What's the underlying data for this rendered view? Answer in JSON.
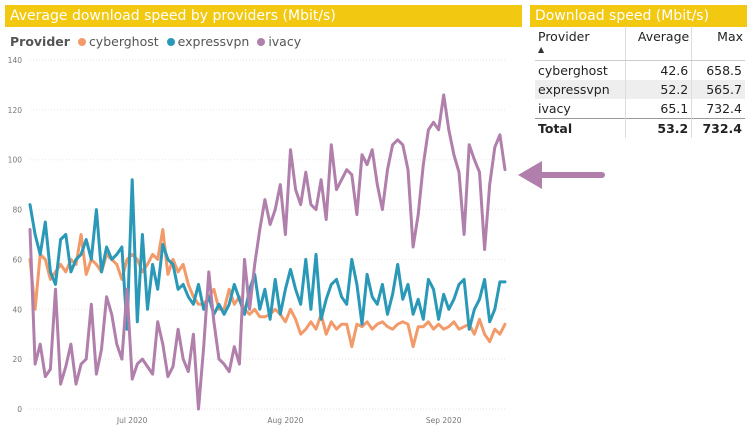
{
  "chart_panel": {
    "title": "Average download speed by providers (Mbit/s)",
    "legend_label": "Provider",
    "legend_items": [
      "cyberghost",
      "expressvpn",
      "ivacy"
    ]
  },
  "table_panel": {
    "title": "Download speed (Mbit/s)",
    "headers": [
      "Provider",
      "Average",
      "Max"
    ],
    "rows": [
      [
        "cyberghost",
        "42.6",
        "658.5"
      ],
      [
        "expressvpn",
        "52.2",
        "565.7"
      ],
      [
        "ivacy",
        "65.1",
        "732.4"
      ]
    ],
    "total": [
      "Total",
      "53.2",
      "732.4"
    ]
  },
  "arrow_color": "#b07fac",
  "chart_data": {
    "type": "line",
    "title": "Average download speed by providers (Mbit/s)",
    "xlabel": "",
    "ylabel": "",
    "ylim": [
      0,
      140
    ],
    "yticks": [
      0,
      20,
      40,
      60,
      80,
      100,
      120,
      140
    ],
    "xtick_labels": [
      "Jul 2020",
      "Aug 2020",
      "Sep 2020"
    ],
    "xtick_positions": [
      20,
      50,
      81
    ],
    "grid": true,
    "legend_position": "top-left",
    "x": [
      0,
      1,
      2,
      3,
      4,
      5,
      6,
      7,
      8,
      9,
      10,
      11,
      12,
      13,
      14,
      15,
      16,
      17,
      18,
      19,
      20,
      21,
      22,
      23,
      24,
      25,
      26,
      27,
      28,
      29,
      30,
      31,
      32,
      33,
      34,
      35,
      36,
      37,
      38,
      39,
      40,
      41,
      42,
      43,
      44,
      45,
      46,
      47,
      48,
      49,
      50,
      51,
      52,
      53,
      54,
      55,
      56,
      57,
      58,
      59,
      60,
      61,
      62,
      63,
      64,
      65,
      66,
      67,
      68,
      69,
      70,
      71,
      72,
      73,
      74,
      75,
      76,
      77,
      78,
      79,
      80,
      81,
      82,
      83,
      84,
      85,
      86,
      87,
      88,
      89,
      90,
      91,
      92,
      93
    ],
    "series": [
      {
        "name": "cyberghost",
        "color": "#f39a6a",
        "values": [
          60,
          40,
          62,
          60,
          52,
          55,
          58,
          55,
          60,
          58,
          70,
          54,
          60,
          58,
          55,
          62,
          60,
          58,
          52,
          60,
          62,
          60,
          55,
          58,
          62,
          60,
          72,
          54,
          60,
          55,
          58,
          50,
          45,
          42,
          42,
          45,
          48,
          40,
          40,
          48,
          42,
          45,
          40,
          38,
          40,
          37,
          37,
          38,
          40,
          38,
          35,
          40,
          36,
          30,
          32,
          35,
          32,
          38,
          30,
          35,
          32,
          34,
          34,
          25,
          34,
          33,
          35,
          32,
          34,
          35,
          33,
          32,
          34,
          35,
          34,
          25,
          33,
          33,
          35,
          32,
          34,
          32,
          33,
          35,
          32,
          33,
          34,
          30,
          36,
          30,
          27,
          32,
          30,
          34
        ]
      },
      {
        "name": "expressvpn",
        "color": "#2a98b7",
        "values": [
          82,
          70,
          62,
          75,
          55,
          50,
          68,
          70,
          55,
          60,
          62,
          68,
          60,
          80,
          55,
          65,
          60,
          62,
          65,
          32,
          92,
          35,
          70,
          40,
          58,
          48,
          66,
          60,
          58,
          48,
          50,
          45,
          42,
          50,
          40,
          45,
          38,
          42,
          38,
          42,
          50,
          44,
          38,
          48,
          54,
          40,
          48,
          36,
          52,
          38,
          48,
          56,
          48,
          42,
          60,
          40,
          62,
          36,
          44,
          50,
          52,
          45,
          42,
          60,
          50,
          34,
          54,
          45,
          42,
          50,
          38,
          46,
          58,
          44,
          50,
          38,
          44,
          36,
          52,
          48,
          36,
          46,
          40,
          44,
          50,
          52,
          32,
          40,
          44,
          52,
          35,
          40,
          51,
          51
        ]
      },
      {
        "name": "ivacy",
        "color": "#b07fac",
        "values": [
          72,
          18,
          26,
          13,
          16,
          48,
          10,
          17,
          26,
          10,
          18,
          20,
          42,
          14,
          24,
          45,
          38,
          26,
          20,
          48,
          12,
          18,
          20,
          17,
          14,
          35,
          26,
          13,
          17,
          32,
          20,
          15,
          30,
          0,
          25,
          55,
          35,
          20,
          18,
          15,
          25,
          18,
          60,
          40,
          58,
          72,
          84,
          74,
          80,
          90,
          70,
          104,
          88,
          82,
          95,
          82,
          80,
          92,
          76,
          106,
          88,
          92,
          96,
          94,
          78,
          102,
          98,
          104,
          90,
          80,
          96,
          106,
          108,
          106,
          96,
          65,
          78,
          98,
          112,
          115,
          112,
          126,
          112,
          102,
          95,
          70,
          106,
          100,
          95,
          64,
          90,
          105,
          110,
          96
        ]
      }
    ]
  }
}
